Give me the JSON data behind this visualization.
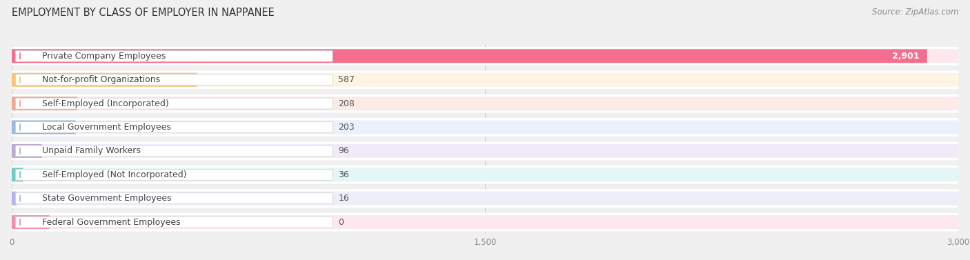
{
  "title": "EMPLOYMENT BY CLASS OF EMPLOYER IN NAPPANEE",
  "source": "Source: ZipAtlas.com",
  "categories": [
    "Private Company Employees",
    "Not-for-profit Organizations",
    "Self-Employed (Incorporated)",
    "Local Government Employees",
    "Unpaid Family Workers",
    "Self-Employed (Not Incorporated)",
    "State Government Employees",
    "Federal Government Employees"
  ],
  "values": [
    2901,
    587,
    208,
    203,
    96,
    36,
    16,
    0
  ],
  "bar_colors": [
    "#f46e8f",
    "#f9c27a",
    "#f0a898",
    "#9ab8e0",
    "#c0a8d5",
    "#72ccc0",
    "#b0b8e8",
    "#f090a8"
  ],
  "bar_bg_colors": [
    "#fde8ee",
    "#fef4e4",
    "#fceae6",
    "#eaf0fc",
    "#f0ebf8",
    "#e4f7f4",
    "#eceef8",
    "#fde8f0"
  ],
  "label_circle_colors": [
    "#f46e8f",
    "#f9c27a",
    "#f0a898",
    "#9ab8e0",
    "#c0a8d5",
    "#72ccc0",
    "#b0b8e8",
    "#f090a8"
  ],
  "xlim": [
    0,
    3000
  ],
  "xticks": [
    0,
    1500,
    3000
  ],
  "xtick_labels": [
    "0",
    "1,500",
    "3,000"
  ],
  "background_color": "#f0f0f0",
  "bar_row_bg": "#ffffff",
  "title_fontsize": 10.5,
  "source_fontsize": 8.5,
  "label_fontsize": 9,
  "value_fontsize": 9
}
